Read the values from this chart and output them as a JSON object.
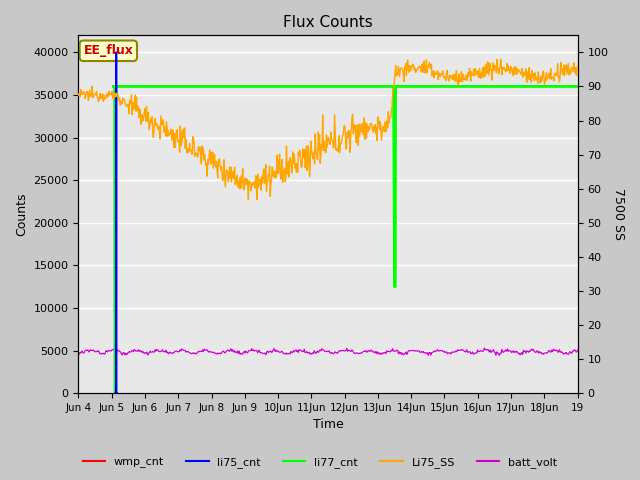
{
  "title": "Flux Counts",
  "xlabel": "Time",
  "ylabel_left": "Counts",
  "ylabel_right": "7500 SS",
  "annotation_text": "EE_flux",
  "annotation_color": "#cc0000",
  "annotation_bg": "#ffffcc",
  "bg_color": "#c8c8c8",
  "plot_bg_color": "#e8e8e8",
  "ylim_left": [
    0,
    42000
  ],
  "ylim_right": [
    0,
    105
  ],
  "xlim": [
    0,
    15
  ],
  "legend_entries": [
    "wmp_cnt",
    "li75_cnt",
    "li77_cnt",
    "Li75_SS",
    "batt_volt"
  ],
  "legend_colors": [
    "red",
    "blue",
    "lime",
    "orange",
    "#cc00cc"
  ],
  "x_tick_labels": [
    "Jun 4",
    "Jun 5",
    "Jun 6",
    "Jun 7",
    "Jun 8",
    "Jun 9",
    "10Jun",
    "11Jun",
    "12Jun",
    "13Jun",
    "14Jun",
    "15Jun",
    "16Jun",
    "17Jun",
    "18Jun",
    "19"
  ],
  "x_tick_positions": [
    0,
    1,
    2,
    3,
    4,
    5,
    6,
    7,
    8,
    9,
    10,
    11,
    12,
    13,
    14,
    15
  ],
  "yticks_left": [
    0,
    5000,
    10000,
    15000,
    20000,
    25000,
    30000,
    35000,
    40000
  ],
  "yticks_right_vals": [
    0,
    10,
    20,
    30,
    40,
    50,
    60,
    70,
    80,
    90,
    100
  ],
  "li77_horizontal_y": 36000,
  "li77_dip_x": 9.5,
  "li77_dip_y": 12500,
  "li77_recovery_x": 15.0,
  "wmp_cnt_x": 1.1,
  "wmp_cnt_y": 36000,
  "li75_spike_x": 1.13,
  "batt_mean": 4700,
  "batt_amp": 400
}
